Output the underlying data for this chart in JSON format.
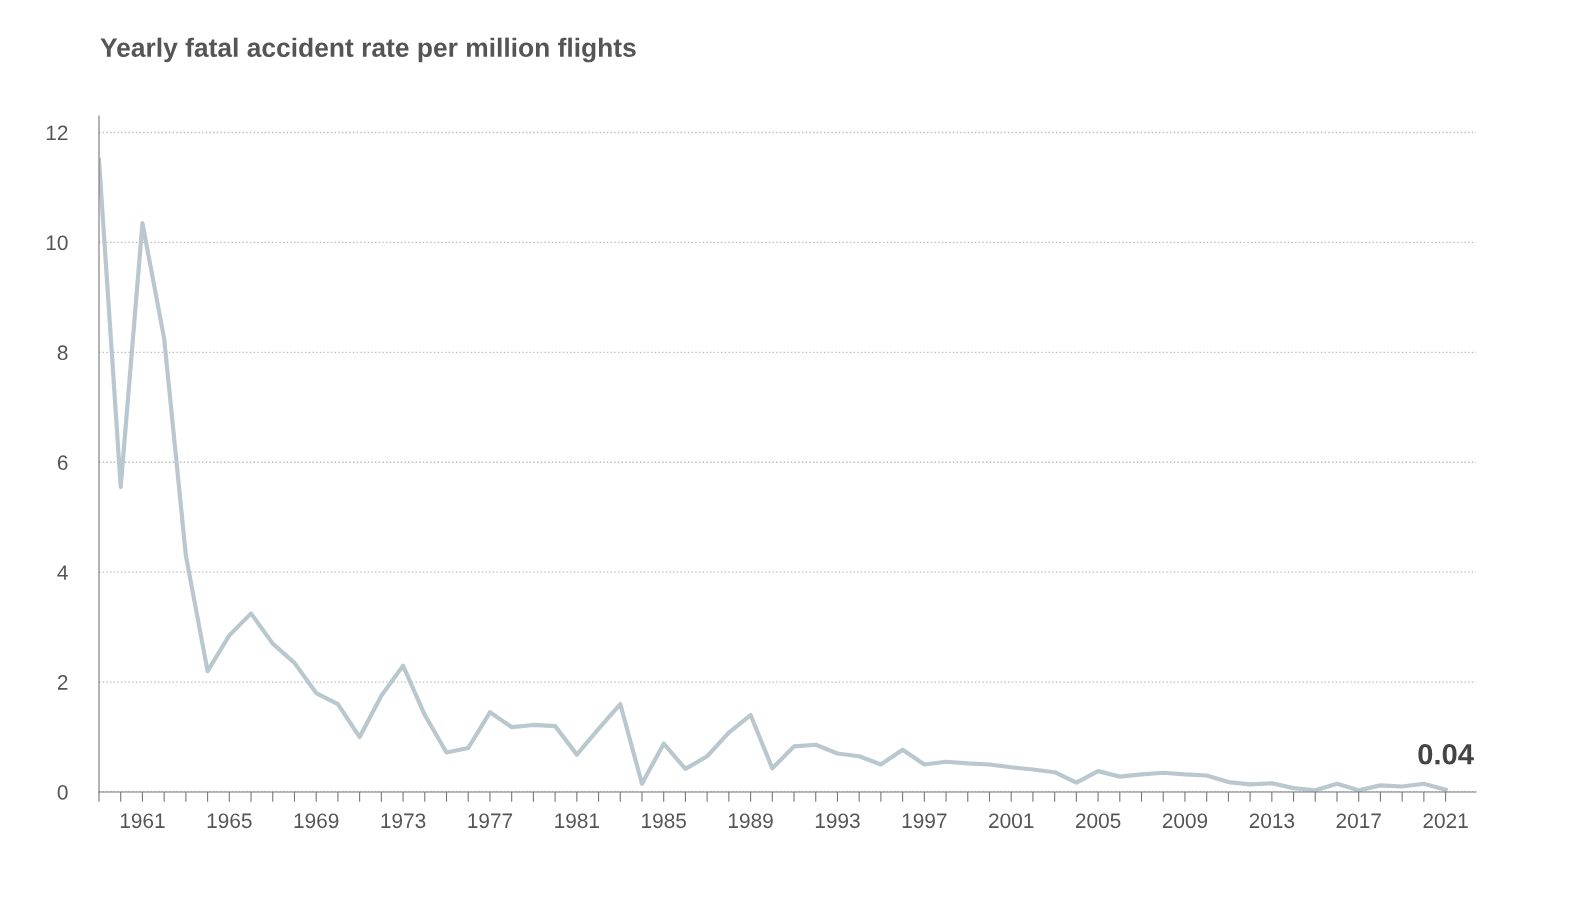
{
  "chart_data": {
    "type": "line",
    "title": "Yearly fatal accident rate per million flights",
    "x": [
      1959,
      1960,
      1961,
      1962,
      1963,
      1964,
      1965,
      1966,
      1967,
      1968,
      1969,
      1970,
      1971,
      1972,
      1973,
      1974,
      1975,
      1976,
      1977,
      1978,
      1979,
      1980,
      1981,
      1982,
      1983,
      1984,
      1985,
      1986,
      1987,
      1988,
      1989,
      1990,
      1991,
      1992,
      1993,
      1994,
      1995,
      1996,
      1997,
      1998,
      1999,
      2000,
      2001,
      2002,
      2003,
      2004,
      2005,
      2006,
      2007,
      2008,
      2009,
      2010,
      2011,
      2012,
      2013,
      2014,
      2015,
      2016,
      2017,
      2018,
      2019,
      2020,
      2021
    ],
    "series": [
      {
        "color": "#b9c7cf",
        "values": [
          11.5,
          5.55,
          10.35,
          8.25,
          4.3,
          2.2,
          2.85,
          3.25,
          2.7,
          2.35,
          1.8,
          1.6,
          1.0,
          1.75,
          2.3,
          1.4,
          0.72,
          0.8,
          1.45,
          1.18,
          1.22,
          1.2,
          0.68,
          1.15,
          1.6,
          0.15,
          0.88,
          0.42,
          0.65,
          1.08,
          1.4,
          0.43,
          0.83,
          0.86,
          0.7,
          0.65,
          0.5,
          0.77,
          0.5,
          0.55,
          0.52,
          0.5,
          0.45,
          0.41,
          0.36,
          0.17,
          0.38,
          0.28,
          0.32,
          0.35,
          0.32,
          0.3,
          0.18,
          0.14,
          0.16,
          0.07,
          0.03,
          0.15,
          0.03,
          0.12,
          0.1,
          0.15,
          0.04
        ],
        "value_labels": [
          null,
          null,
          null,
          null,
          null,
          null,
          null,
          null,
          null,
          null,
          null,
          null,
          null,
          null,
          null,
          null,
          null,
          null,
          null,
          null,
          null,
          null,
          null,
          null,
          null,
          null,
          null,
          null,
          null,
          null,
          null,
          null,
          null,
          null,
          null,
          null,
          null,
          null,
          null,
          null,
          null,
          null,
          null,
          null,
          null,
          null,
          null,
          null,
          null,
          null,
          null,
          null,
          null,
          null,
          null,
          null,
          null,
          null,
          null,
          null,
          null,
          null,
          "0.04"
        ]
      }
    ],
    "xlim": [
      1959,
      2022.4
    ],
    "ylim": [
      0,
      12.3
    ],
    "xticks": [
      {
        "value": 1959,
        "label": null
      },
      {
        "value": 1960,
        "label": null
      },
      1961,
      {
        "value": 1962,
        "label": null
      },
      {
        "value": 1963,
        "label": null
      },
      {
        "value": 1964,
        "label": null
      },
      1965,
      {
        "value": 1966,
        "label": null
      },
      {
        "value": 1967,
        "label": null
      },
      {
        "value": 1968,
        "label": null
      },
      1969,
      {
        "value": 1970,
        "label": null
      },
      {
        "value": 1971,
        "label": null
      },
      {
        "value": 1972,
        "label": null
      },
      1973,
      {
        "value": 1974,
        "label": null
      },
      {
        "value": 1975,
        "label": null
      },
      {
        "value": 1976,
        "label": null
      },
      1977,
      {
        "value": 1978,
        "label": null
      },
      {
        "value": 1979,
        "label": null
      },
      {
        "value": 1980,
        "label": null
      },
      1981,
      {
        "value": 1982,
        "label": null
      },
      {
        "value": 1983,
        "label": null
      },
      {
        "value": 1984,
        "label": null
      },
      1985,
      {
        "value": 1986,
        "label": null
      },
      {
        "value": 1987,
        "label": null
      },
      {
        "value": 1988,
        "label": null
      },
      1989,
      {
        "value": 1990,
        "label": null
      },
      {
        "value": 1991,
        "label": null
      },
      {
        "value": 1992,
        "label": null
      },
      1993,
      {
        "value": 1994,
        "label": null
      },
      {
        "value": 1995,
        "label": null
      },
      {
        "value": 1996,
        "label": null
      },
      1997,
      {
        "value": 1998,
        "label": null
      },
      {
        "value": 1999,
        "label": null
      },
      {
        "value": 2000,
        "label": null
      },
      2001,
      {
        "value": 2002,
        "label": null
      },
      {
        "value": 2003,
        "label": null
      },
      {
        "value": 2004,
        "label": null
      },
      2005,
      {
        "value": 2006,
        "label": null
      },
      {
        "value": 2007,
        "label": null
      },
      {
        "value": 2008,
        "label": null
      },
      2009,
      {
        "value": 2010,
        "label": null
      },
      {
        "value": 2011,
        "label": null
      },
      {
        "value": 2012,
        "label": null
      },
      2013,
      {
        "value": 2014,
        "label": null
      },
      {
        "value": 2015,
        "label": null
      },
      {
        "value": 2016,
        "label": null
      },
      2017,
      {
        "value": 2018,
        "label": null
      },
      {
        "value": 2019,
        "label": null
      },
      {
        "value": 2020,
        "label": null
      },
      2021
    ],
    "yticks": [
      0,
      2,
      4,
      6,
      8,
      10,
      12
    ],
    "grid": "y",
    "marker": "none",
    "line_style": "solid",
    "legend": false
  }
}
